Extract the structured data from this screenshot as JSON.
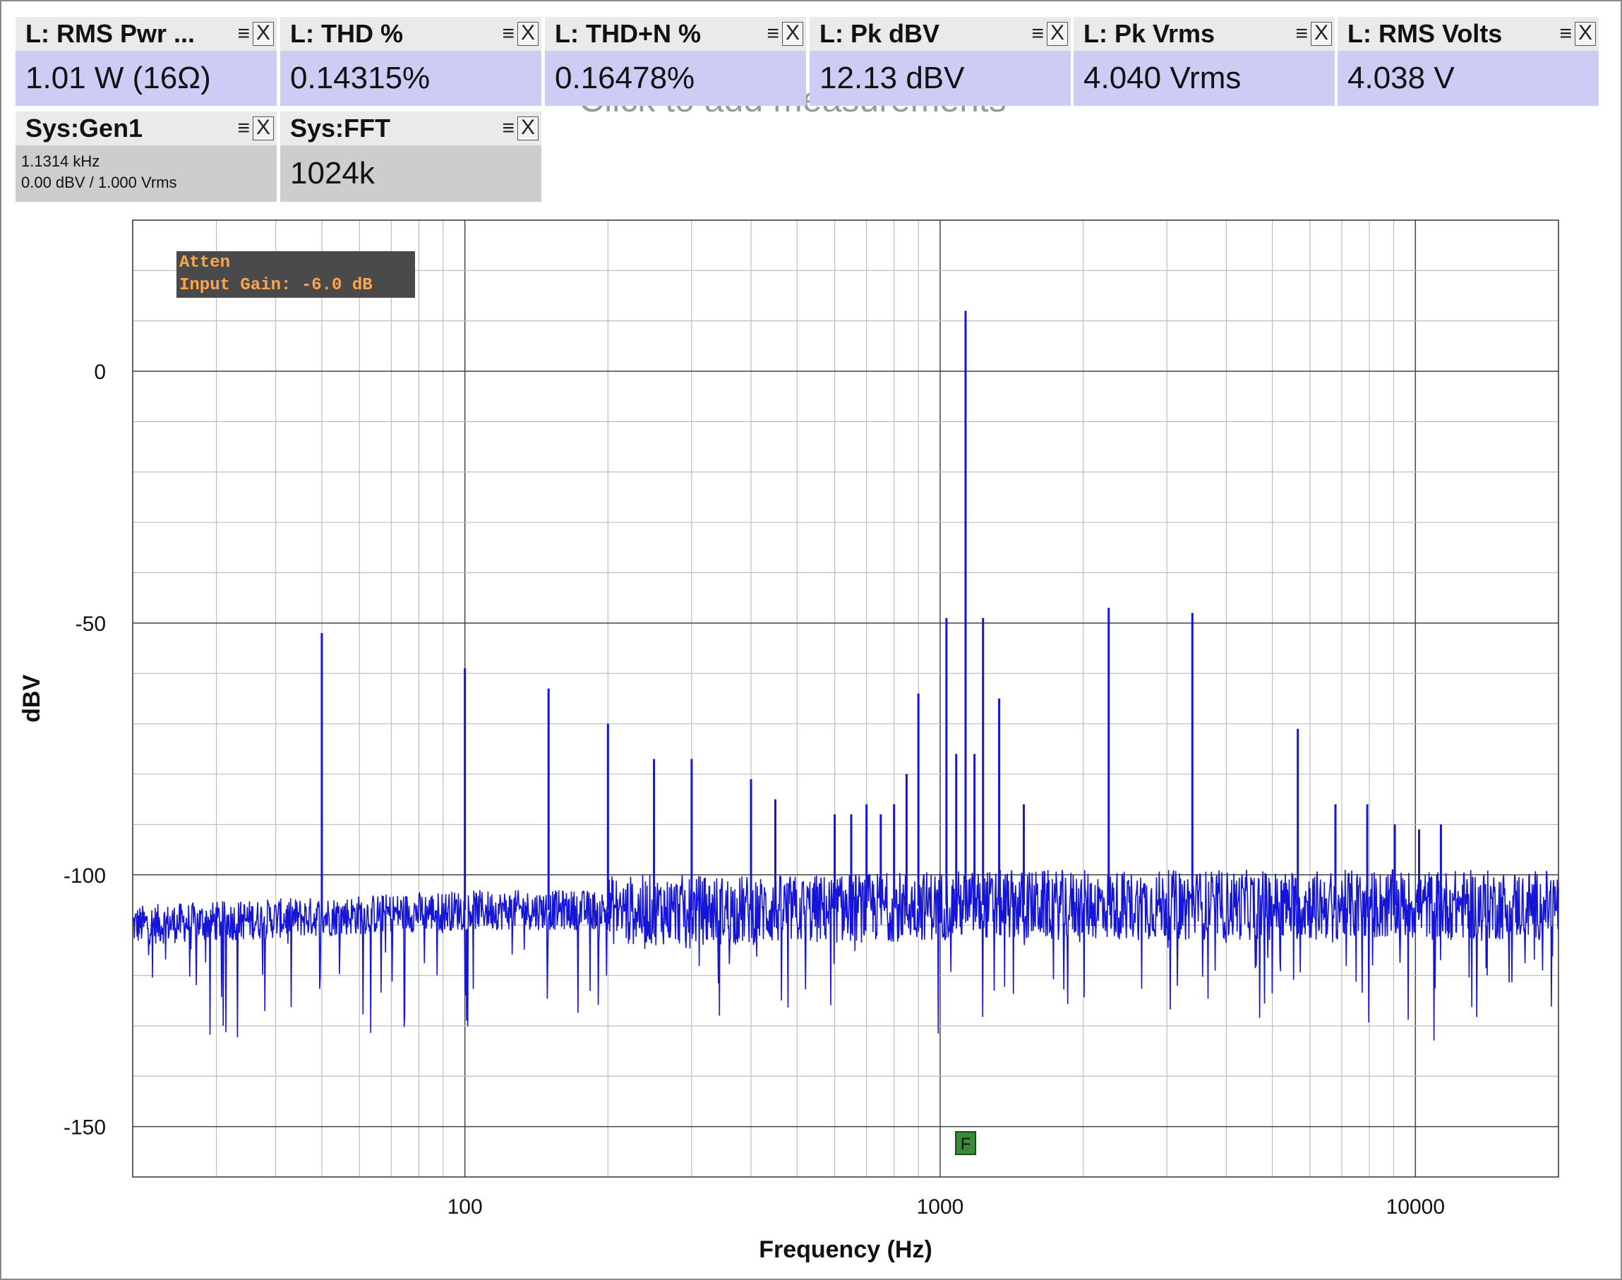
{
  "hint_text": "Click to add measurements",
  "tiles": [
    {
      "title": "L: RMS Pwr ...",
      "value": "1.01 W (16Ω)"
    },
    {
      "title": "L: THD %",
      "value": "0.14315%"
    },
    {
      "title": "L: THD+N %",
      "value": "0.16478%"
    },
    {
      "title": "L: Pk dBV",
      "value": "12.13 dBV"
    },
    {
      "title": "L: Pk Vrms",
      "value": "4.040 Vrms"
    },
    {
      "title": "L: RMS Volts",
      "value": "4.038 V"
    }
  ],
  "sys_tiles": {
    "gen": {
      "title": "Sys:Gen1",
      "line1": "1.1314 kHz",
      "line2": "0.00 dBV  / 1.000 Vrms"
    },
    "fft": {
      "title": "Sys:FFT",
      "value": "1024k"
    }
  },
  "tile_controls": {
    "menu_icon": "≡",
    "close_icon": "X"
  },
  "overlay": {
    "line1": "Atten",
    "line2": "Input  Gain:  -6.0  dB"
  },
  "marker": {
    "label": "F",
    "frequency": 1131.4
  },
  "colors": {
    "trace": "#1515d8",
    "tile_value_bg": "#ccccf5",
    "overlay_bg": "#4a4a4a",
    "overlay_text": "#ffa64d",
    "marker_bg": "#3a8a3a"
  },
  "chart_data": {
    "type": "line",
    "x_scale": "log",
    "xlabel": "Frequency (Hz)",
    "ylabel": "dBV",
    "xlim": [
      20,
      20000
    ],
    "ylim": [
      -160,
      30
    ],
    "x_ticks": [
      100,
      1000,
      10000
    ],
    "x_tick_labels": [
      "100",
      "1000",
      "10000"
    ],
    "y_ticks": [
      0,
      -50,
      -100,
      -150
    ],
    "y_tick_labels": [
      "0",
      "-50",
      "-100",
      "-150"
    ],
    "grid": true,
    "noise_floor": [
      [
        20,
        -110
      ],
      [
        100,
        -107
      ],
      [
        500,
        -107
      ],
      [
        1000,
        -106
      ],
      [
        20000,
        -106
      ]
    ],
    "peaks": [
      {
        "x": 50,
        "y": -52
      },
      {
        "x": 100,
        "y": -59
      },
      {
        "x": 150,
        "y": -63
      },
      {
        "x": 200,
        "y": -70
      },
      {
        "x": 250,
        "y": -77
      },
      {
        "x": 300,
        "y": -77
      },
      {
        "x": 400,
        "y": -81
      },
      {
        "x": 450,
        "y": -85
      },
      {
        "x": 600,
        "y": -88
      },
      {
        "x": 650,
        "y": -88
      },
      {
        "x": 700,
        "y": -86
      },
      {
        "x": 750,
        "y": -88
      },
      {
        "x": 800,
        "y": -86
      },
      {
        "x": 850,
        "y": -80
      },
      {
        "x": 900,
        "y": -64
      },
      {
        "x": 1031,
        "y": -49
      },
      {
        "x": 1081,
        "y": -76
      },
      {
        "x": 1131,
        "y": 12
      },
      {
        "x": 1181,
        "y": -76
      },
      {
        "x": 1231,
        "y": -49
      },
      {
        "x": 1331,
        "y": -65
      },
      {
        "x": 1500,
        "y": -86
      },
      {
        "x": 2263,
        "y": -47
      },
      {
        "x": 3394,
        "y": -48
      },
      {
        "x": 5657,
        "y": -71
      },
      {
        "x": 6788,
        "y": -86
      },
      {
        "x": 7919,
        "y": -86
      },
      {
        "x": 9050,
        "y": -90
      },
      {
        "x": 10181,
        "y": -91
      },
      {
        "x": 11314,
        "y": -90
      }
    ]
  }
}
